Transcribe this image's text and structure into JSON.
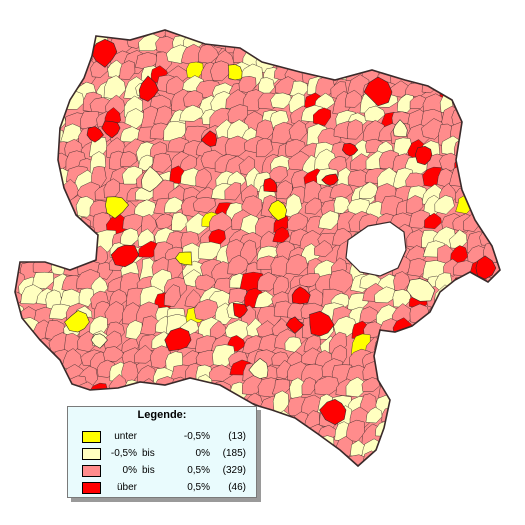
{
  "map": {
    "colors": {
      "background": "#ffffff",
      "border": "#3a2a2a",
      "hole": "#ffffff",
      "class_under": "#ffff00",
      "class_low": "#ffffc0",
      "class_mid": "#ff8c8c",
      "class_high": "#ff0000"
    }
  },
  "legend": {
    "title": "Legende:",
    "items": [
      {
        "color": "#ffff00",
        "prefix": "unter",
        "connector": "",
        "value": "-0,5%",
        "count": "(13)"
      },
      {
        "color": "#ffffc0",
        "prefix": "-0,5%",
        "connector": "bis",
        "value": "0%",
        "count": "(185)"
      },
      {
        "color": "#ff8c8c",
        "prefix": "0%",
        "connector": "bis",
        "value": "0,5%",
        "count": "(329)"
      },
      {
        "color": "#ff0000",
        "prefix": "über",
        "connector": "",
        "value": "0,5%",
        "count": "(46)"
      }
    ]
  }
}
